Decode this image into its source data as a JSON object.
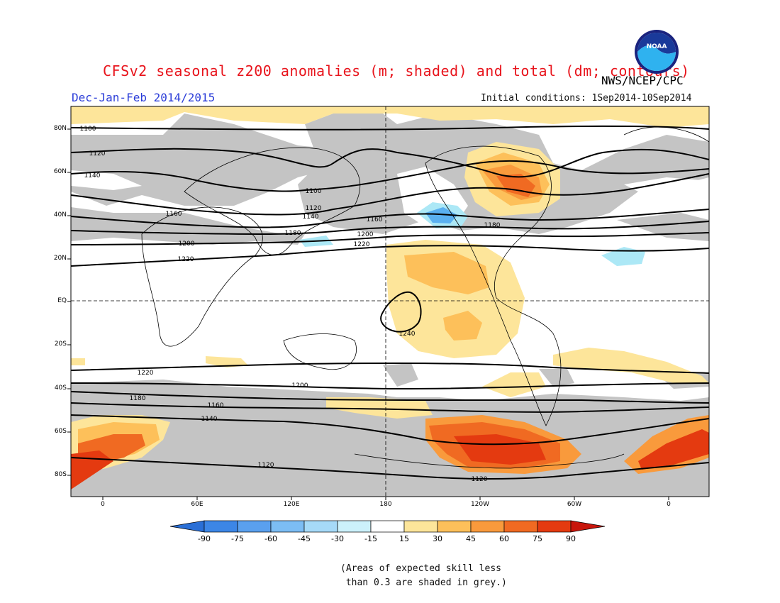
{
  "header": {
    "title": "CFSv2 seasonal z200 anomalies (m; shaded) and total (dm; contours)",
    "agency": "NWS/NCEP/CPC",
    "season": "Dec-Jan-Feb 2014/2015",
    "initial_conditions": "Initial conditions: 1Sep2014-10Sep2014",
    "logo_text": "NOAA"
  },
  "map": {
    "lat_labels": [
      "80N",
      "60N",
      "40N",
      "20N",
      "EQ",
      "20S",
      "40S",
      "60S",
      "80S"
    ],
    "lon_labels": [
      "0",
      "60E",
      "120E",
      "180",
      "120W",
      "60W",
      "0"
    ],
    "contour_labels": [
      "1100",
      "1120",
      "1140",
      "1160",
      "1180",
      "1200",
      "1220",
      "1240",
      "1100",
      "1120",
      "1140",
      "1160",
      "1180",
      "1200",
      "1220",
      "1220",
      "1200",
      "1180",
      "1160",
      "1140",
      "1120",
      "1120"
    ],
    "colors": {
      "grey_skill": "#c4c4c4",
      "light_yellow": "#fde59a",
      "yellow_orange": "#fdc05a",
      "orange": "#f99a3c",
      "red_orange": "#f06a22",
      "red": "#e43a10",
      "light_blue": "#ace8f6",
      "blue": "#5ab0f0"
    }
  },
  "colorbar": {
    "labels": [
      "-90",
      "-75",
      "-60",
      "-45",
      "-30",
      "-15",
      "15",
      "30",
      "45",
      "60",
      "75",
      "90"
    ],
    "colors": [
      "#2a6fd6",
      "#3c86e6",
      "#5aa0ee",
      "#7cbdf4",
      "#a6daf8",
      "#ccf1fb",
      "#ffffff",
      "#fde59a",
      "#fdc05a",
      "#f99a3c",
      "#f06a22",
      "#e43a10",
      "#c8160c"
    ]
  },
  "note": {
    "line1": "(Areas of expected skill less",
    "line2": " than 0.3 are shaded in grey.)"
  }
}
